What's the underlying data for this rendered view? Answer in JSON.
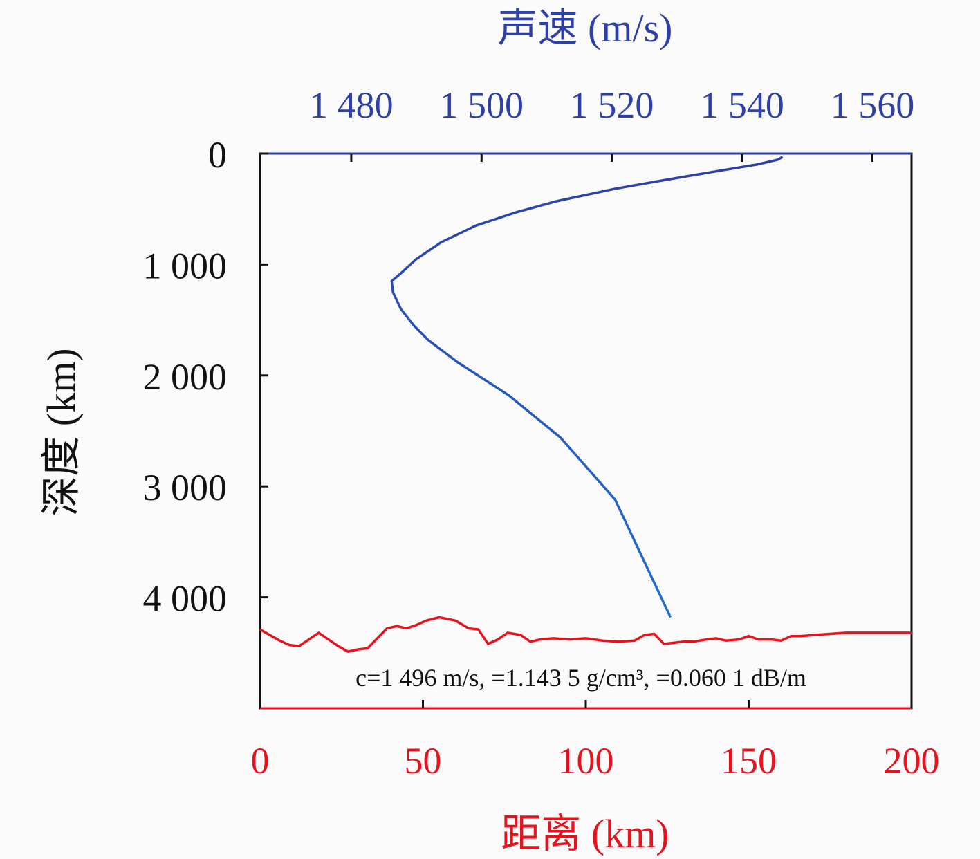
{
  "colors": {
    "speed": "#2d3fa8",
    "speed_gradient_end": "#1f6fd0",
    "range": "#e8121d",
    "frame": "#111111",
    "background": "#fbfbfb"
  },
  "chart_data": {
    "type": "line",
    "title": "",
    "top_axis": {
      "label": "声速 (m/s)",
      "range": [
        1466,
        1566
      ],
      "ticks": [
        1480,
        1500,
        1520,
        1540,
        1560
      ],
      "tick_labels": [
        "1 480",
        "1 500",
        "1 520",
        "1 540",
        "1 560"
      ]
    },
    "bottom_axis": {
      "label": "距离 (km)",
      "range": [
        0,
        200
      ],
      "ticks": [
        0,
        50,
        100,
        150,
        200
      ],
      "tick_labels": [
        "0",
        "50",
        "100",
        "150",
        "200"
      ]
    },
    "left_axis": {
      "label": "深度 (km)",
      "range": [
        0,
        5000
      ],
      "inverted": true,
      "ticks": [
        0,
        1000,
        2000,
        3000,
        4000
      ],
      "tick_labels": [
        "0",
        "1 000",
        "2 000",
        "3 000",
        "4 000"
      ]
    },
    "series": [
      {
        "axis": "top",
        "speed": [
          1546.2,
          1545.5,
          1542.2,
          1536.0,
          1528.0,
          1520.3,
          1511.5,
          1505.3,
          1499.1,
          1493.8,
          1490.0,
          1487.6,
          1486.2,
          1486.4,
          1487.6,
          1489.6,
          1491.8,
          1496.3,
          1504.2,
          1512.1,
          1520.5,
          1529.0
        ],
        "depth": [
          30,
          55,
          100,
          160,
          240,
          320,
          430,
          530,
          650,
          800,
          950,
          1080,
          1150,
          1250,
          1400,
          1550,
          1680,
          1880,
          2180,
          2560,
          3120,
          4180
        ]
      },
      {
        "axis": "bottom",
        "range_km": [
          0,
          3,
          6,
          9,
          12,
          15,
          18,
          21,
          24,
          27,
          30,
          33,
          36,
          39,
          42,
          45,
          48,
          51,
          55,
          60,
          64,
          67,
          70,
          73,
          76,
          80,
          83,
          86,
          90,
          95,
          100,
          105,
          110,
          115,
          118,
          121,
          124,
          127,
          130,
          133,
          137,
          140,
          143,
          147,
          150,
          153,
          157,
          160,
          163,
          166,
          170,
          175,
          180,
          190,
          200
        ],
        "depth": [
          4290,
          4340,
          4390,
          4430,
          4440,
          4380,
          4320,
          4380,
          4440,
          4490,
          4470,
          4460,
          4370,
          4280,
          4260,
          4280,
          4250,
          4210,
          4180,
          4210,
          4280,
          4290,
          4420,
          4380,
          4320,
          4340,
          4400,
          4380,
          4370,
          4380,
          4370,
          4390,
          4400,
          4390,
          4340,
          4330,
          4420,
          4410,
          4400,
          4400,
          4380,
          4370,
          4390,
          4380,
          4350,
          4380,
          4380,
          4390,
          4350,
          4350,
          4340,
          4330,
          4320,
          4320,
          4320
        ]
      }
    ],
    "annotation": "c=1 496 m/s, =1.143 5 g/cm³, =0.060 1 dB/m"
  }
}
